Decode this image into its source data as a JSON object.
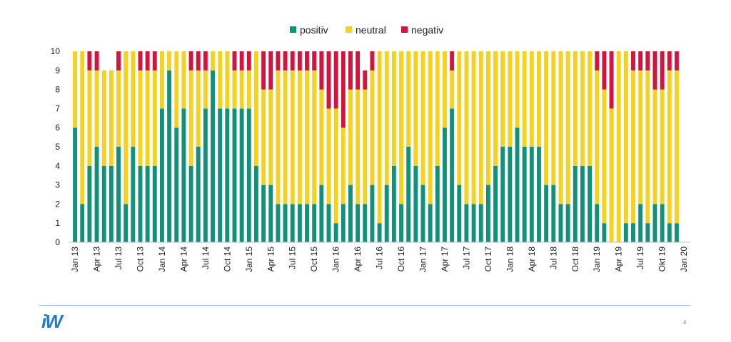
{
  "colors": {
    "positiv": "#12917a",
    "neutral": "#f5d21f",
    "negativ": "#d4143f",
    "axis": "#bfbfbf",
    "footer": "#1f78c8"
  },
  "chart_data": {
    "type": "bar",
    "stacked": true,
    "ylim": [
      0,
      10
    ],
    "yticks": [
      "0",
      "1",
      "2",
      "3",
      "4",
      "5",
      "6",
      "7",
      "8",
      "9",
      "10"
    ],
    "legend_position": "top-center",
    "series": [
      {
        "name": "positiv",
        "values": [
          6,
          2,
          4,
          5,
          4,
          4,
          5,
          2,
          5,
          4,
          4,
          4,
          7,
          9,
          6,
          7,
          4,
          5,
          7,
          9,
          7,
          7,
          7,
          7,
          7,
          4,
          3,
          3,
          2,
          2,
          2,
          2,
          2,
          2,
          3,
          2,
          1,
          2,
          3,
          2,
          2,
          3,
          1,
          3,
          4,
          2,
          5,
          4,
          3,
          2,
          4,
          6,
          7,
          3,
          2,
          2,
          2,
          3,
          4,
          5,
          5,
          6,
          5,
          5,
          5,
          3,
          3,
          2,
          2,
          4,
          4,
          4,
          2,
          1,
          0,
          0,
          1,
          1,
          2,
          1,
          2,
          2,
          1,
          1
        ]
      },
      {
        "name": "neutral",
        "values": [
          4,
          8,
          5,
          4,
          5,
          5,
          4,
          8,
          5,
          5,
          5,
          5,
          3,
          1,
          4,
          3,
          5,
          4,
          2,
          1,
          3,
          3,
          2,
          2,
          2,
          6,
          5,
          5,
          7,
          7,
          7,
          7,
          7,
          7,
          5,
          5,
          6,
          4,
          5,
          6,
          6,
          6,
          9,
          7,
          6,
          8,
          5,
          6,
          7,
          8,
          6,
          4,
          2,
          7,
          8,
          8,
          8,
          7,
          6,
          5,
          5,
          4,
          5,
          5,
          5,
          7,
          7,
          8,
          8,
          6,
          6,
          6,
          7,
          7,
          7,
          10,
          9,
          8,
          7,
          8,
          6,
          6,
          8,
          8
        ]
      },
      {
        "name": "negativ",
        "values": [
          0,
          0,
          1,
          1,
          0,
          0,
          1,
          0,
          0,
          1,
          1,
          1,
          0,
          0,
          0,
          0,
          1,
          1,
          1,
          0,
          0,
          0,
          1,
          1,
          1,
          0,
          2,
          2,
          1,
          1,
          1,
          1,
          1,
          1,
          2,
          3,
          3,
          4,
          2,
          2,
          1,
          1,
          0,
          0,
          0,
          0,
          0,
          0,
          0,
          0,
          0,
          0,
          1,
          0,
          0,
          0,
          0,
          0,
          0,
          0,
          0,
          0,
          0,
          0,
          0,
          0,
          0,
          0,
          0,
          0,
          0,
          0,
          1,
          2,
          3,
          0,
          0,
          1,
          1,
          1,
          2,
          2,
          1,
          1
        ]
      }
    ],
    "x_tick_labels": [
      {
        "i": 0,
        "label": "Jan 13"
      },
      {
        "i": 3,
        "label": "Apr 13"
      },
      {
        "i": 6,
        "label": "Jul 13"
      },
      {
        "i": 9,
        "label": "Oct 13"
      },
      {
        "i": 12,
        "label": "Jan 14"
      },
      {
        "i": 15,
        "label": "Apr 14"
      },
      {
        "i": 18,
        "label": "Jul 14"
      },
      {
        "i": 21,
        "label": "Oct 14"
      },
      {
        "i": 24,
        "label": "Jan 15"
      },
      {
        "i": 27,
        "label": "Apr 15"
      },
      {
        "i": 30,
        "label": "Jul 15"
      },
      {
        "i": 33,
        "label": "Oct 15"
      },
      {
        "i": 36,
        "label": "Jan 16"
      },
      {
        "i": 39,
        "label": "Apr 16"
      },
      {
        "i": 42,
        "label": "Jul 16"
      },
      {
        "i": 45,
        "label": "Oct 16"
      },
      {
        "i": 48,
        "label": "Jan 17"
      },
      {
        "i": 51,
        "label": "Apr 17"
      },
      {
        "i": 54,
        "label": "Jul 17"
      },
      {
        "i": 57,
        "label": "Oct 17"
      },
      {
        "i": 60,
        "label": "Jan 18"
      },
      {
        "i": 63,
        "label": "Apr 18"
      },
      {
        "i": 66,
        "label": "Jul 18"
      },
      {
        "i": 69,
        "label": "Oct 18"
      },
      {
        "i": 72,
        "label": "Jan 19"
      },
      {
        "i": 75,
        "label": "Apr 19"
      },
      {
        "i": 78,
        "label": "Jul 19"
      },
      {
        "i": 81,
        "label": "Okt 19"
      },
      {
        "i": 84,
        "label": "Jan 20"
      }
    ]
  },
  "footer": {
    "logo_text": "iW",
    "page_number": "4"
  }
}
